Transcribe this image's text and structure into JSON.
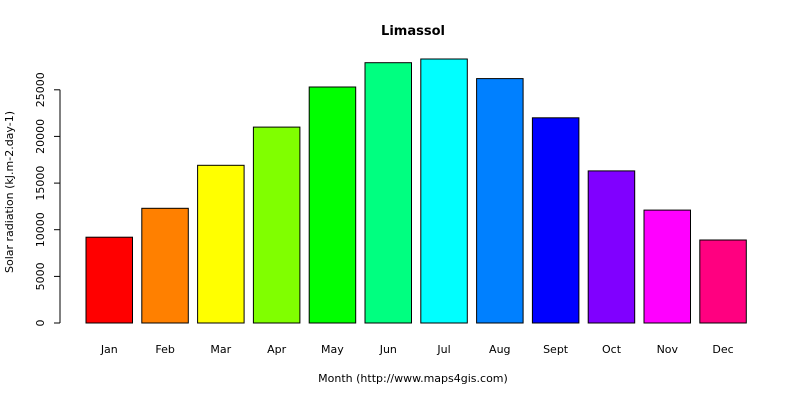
{
  "chart_data": {
    "type": "bar",
    "title": "Limassol",
    "xlabel": "Month (http://www.maps4gis.com)",
    "ylabel": "Solar radiation (kJ.m-2.day-1)",
    "categories": [
      "Jan",
      "Feb",
      "Mar",
      "Apr",
      "May",
      "Jun",
      "Jul",
      "Aug",
      "Sept",
      "Oct",
      "Nov",
      "Dec"
    ],
    "values": [
      9200,
      12300,
      16900,
      21000,
      25300,
      27900,
      28300,
      26200,
      22000,
      16300,
      12100,
      8900
    ],
    "colors": [
      "#FF0000",
      "#FF8000",
      "#FFFF00",
      "#80FF00",
      "#00FF00",
      "#00FF80",
      "#00FFFF",
      "#0080FF",
      "#0000FF",
      "#8000FF",
      "#FF00FF",
      "#FF0080"
    ],
    "ylim": [
      0,
      28300
    ],
    "yticks": [
      0,
      5000,
      10000,
      15000,
      20000,
      25000
    ],
    "grid": false,
    "legend": "none"
  }
}
